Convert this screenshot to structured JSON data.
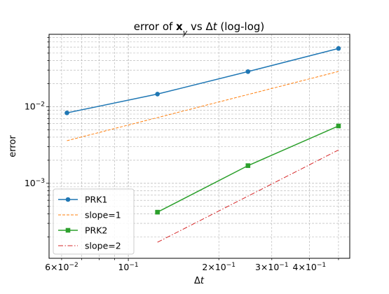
{
  "chart_data": {
    "type": "line",
    "title": {
      "pre": "error of ",
      "bold": "x",
      "sub": "y",
      "post": " vs Δ",
      "it": "t",
      "tail": " (log-log)"
    },
    "xlabel": {
      "pre": "Δ",
      "it": "t"
    },
    "ylabel": "error",
    "xscale": "log",
    "yscale": "log",
    "xlim": [
      0.0545,
      0.545
    ],
    "ylim": [
      0.000105,
      0.088
    ],
    "grid": true,
    "legend_position": "lower-left",
    "x_ticks_major": [
      {
        "value": 0.1,
        "base": "10",
        "exp": "−1"
      }
    ],
    "x_ticks_minor_labeled": [
      {
        "value": 0.06,
        "coef": "6×10",
        "exp": "−2"
      },
      {
        "value": 0.2,
        "coef": "2×10",
        "exp": "−1"
      },
      {
        "value": 0.3,
        "coef": "3×10",
        "exp": "−1"
      },
      {
        "value": 0.4,
        "coef": "4×10",
        "exp": "−1"
      }
    ],
    "y_ticks_major": [
      {
        "value": 0.001,
        "base": "10",
        "exp": "−3"
      },
      {
        "value": 0.01,
        "base": "10",
        "exp": "−2"
      }
    ],
    "series": [
      {
        "name": "PRK1",
        "color": "#1f77b4",
        "linestyle": "solid",
        "marker": "circle",
        "x": [
          0.0625,
          0.125,
          0.25,
          0.5
        ],
        "y": [
          0.0083,
          0.0146,
          0.0287,
          0.0575
        ]
      },
      {
        "name": "slope=1",
        "color": "#ff7f0e",
        "linestyle": "dashed",
        "marker": "none",
        "x": [
          0.0625,
          0.5
        ],
        "y": [
          0.0036,
          0.0288
        ]
      },
      {
        "name": "PRK2",
        "color": "#2ca02c",
        "linestyle": "solid",
        "marker": "square",
        "x": [
          0.125,
          0.25,
          0.5
        ],
        "y": [
          0.00042,
          0.0017,
          0.0056
        ]
      },
      {
        "name": "slope=2",
        "color": "#d62728",
        "linestyle": "dashdot",
        "marker": "none",
        "x": [
          0.125,
          0.5
        ],
        "y": [
          0.00017,
          0.00272
        ]
      }
    ]
  }
}
